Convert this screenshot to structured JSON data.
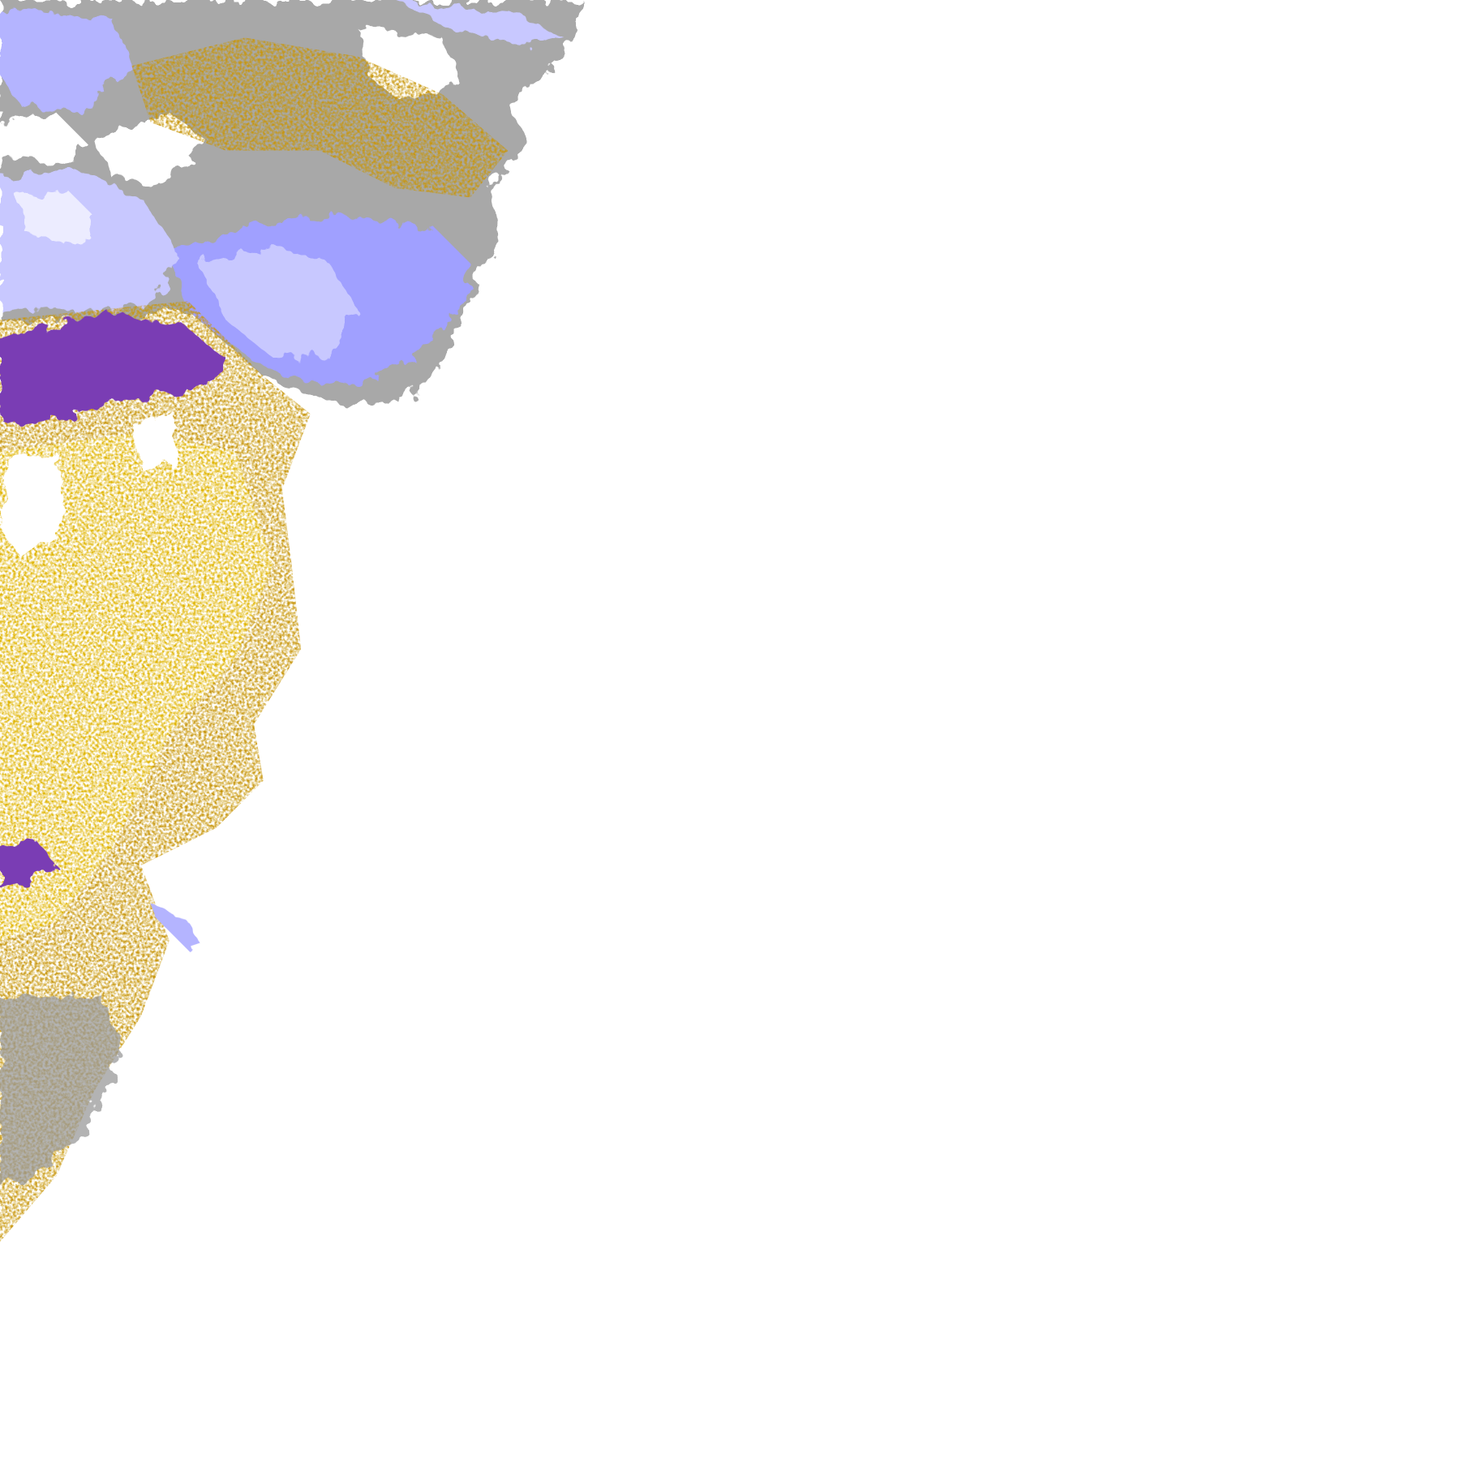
{
  "map": {
    "type": "precipitation-radar-tile",
    "background": "#ffffff",
    "palette": {
      "snow_pale": "#ececff",
      "snow_light": "#c8c8ff",
      "snow_medium": "#a0a0ff",
      "mixed_gray_light": "#b4b4b4",
      "mixed_gray_dark": "#8c8c8c",
      "rain_gold": "#c8960a",
      "rain_yellow": "#e0b400",
      "heavy_purple": "#7a3cb4",
      "magenta": "#d040e0"
    }
  }
}
